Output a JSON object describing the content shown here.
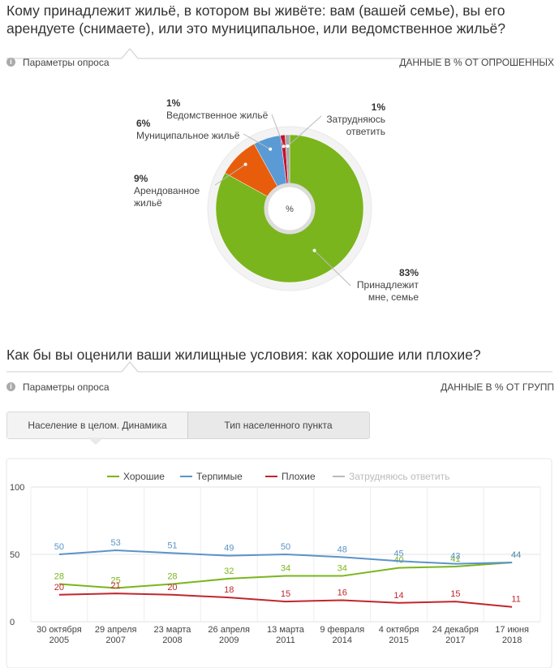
{
  "chart_data": [
    {
      "type": "pie",
      "title": "Кому принадлежит жильё, в котором вы живёте: вам (вашей семье), вы его арендуете (снимаете), или это муниципальное, или ведомственное жильё?",
      "center_label": "%",
      "categories": [
        "Принадлежит мне, семье",
        "Арендованное жильё",
        "Муниципальное жильё",
        "Ведомственное жильё",
        "Затрудняюсь ответить"
      ],
      "values": [
        83,
        9,
        6,
        1,
        1
      ],
      "value_labels": [
        "83%",
        "9%",
        "6%",
        "1%",
        "1%"
      ],
      "colors": [
        "#7ab51d",
        "#e85d0c",
        "#5b9bd5",
        "#c8102e",
        "#a8a8a8"
      ]
    },
    {
      "type": "line",
      "title": "Как бы вы оценили ваши жилищные условия: как хорошие или плохие?",
      "categories": [
        "30 октября 2005",
        "29 апреля 2007",
        "23 марта 2008",
        "26 апреля 2009",
        "13 марта 2011",
        "9 февраля 2014",
        "4 октября 2015",
        "24 декабря 2017",
        "17 июня 2018"
      ],
      "series": [
        {
          "name": "Хорошие",
          "color": "#7ab51d",
          "values": [
            28,
            25,
            28,
            32,
            34,
            34,
            40,
            41,
            44
          ]
        },
        {
          "name": "Терпимые",
          "color": "#5b94c8",
          "values": [
            50,
            53,
            51,
            49,
            50,
            48,
            45,
            43,
            44
          ]
        },
        {
          "name": "Плохие",
          "color": "#c0272d",
          "values": [
            20,
            21,
            20,
            18,
            15,
            16,
            14,
            15,
            11
          ]
        },
        {
          "name": "Затрудняюсь ответить",
          "color": "#bbbbbb",
          "values": [
            null,
            null,
            null,
            null,
            null,
            null,
            null,
            null,
            null
          ]
        }
      ],
      "ylim": [
        0,
        100
      ],
      "yticks": [
        0,
        50,
        100
      ],
      "grid": true,
      "legend": "top"
    }
  ],
  "panels": [
    {
      "params": "Параметры опроса",
      "note": "ДАННЫЕ В % ОТ ОПРОШЕННЫХ"
    },
    {
      "params": "Параметры опроса",
      "note": "ДАННЫЕ В % ОТ ГРУПП"
    }
  ],
  "tabs": [
    "Население в целом. Динамика",
    "Тип населенного пункта"
  ]
}
